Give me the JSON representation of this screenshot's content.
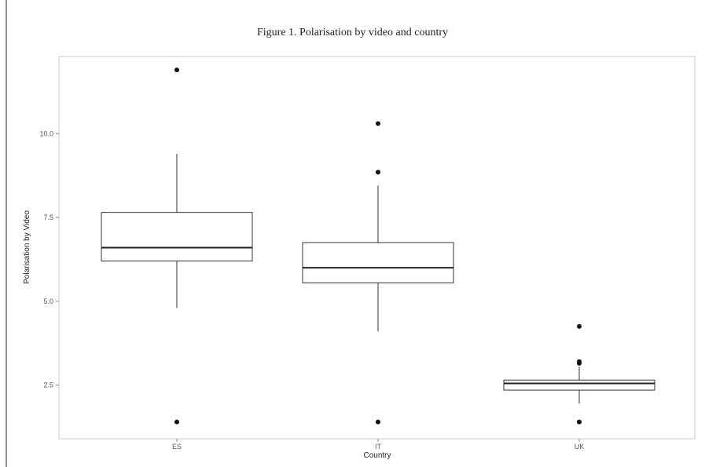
{
  "chart_data": {
    "type": "box",
    "title": "Figure 1. Polarisation by video and country",
    "xlabel": "Country",
    "ylabel": "Polarisation by Video",
    "categories": [
      "ES",
      "IT",
      "UK"
    ],
    "ylim": [
      0.9,
      12.3
    ],
    "yticks": [
      2.5,
      5.0,
      7.5,
      10.0
    ],
    "ytick_labels": [
      "2.5",
      "5.0",
      "7.5",
      "10.0"
    ],
    "grid": false,
    "boxes": [
      {
        "category": "ES",
        "whisker_low": 4.8,
        "q1": 6.2,
        "median": 6.6,
        "q3": 7.65,
        "whisker_high": 9.4,
        "outliers": [
          11.9,
          1.4
        ]
      },
      {
        "category": "IT",
        "whisker_low": 4.1,
        "q1": 5.55,
        "median": 6.0,
        "q3": 6.75,
        "whisker_high": 8.45,
        "outliers": [
          10.3,
          8.85,
          1.4
        ]
      },
      {
        "category": "UK",
        "whisker_low": 1.95,
        "q1": 2.35,
        "median": 2.55,
        "q3": 2.65,
        "whisker_high": 3.05,
        "outliers": [
          4.25,
          3.2,
          3.15,
          1.4
        ]
      }
    ]
  }
}
